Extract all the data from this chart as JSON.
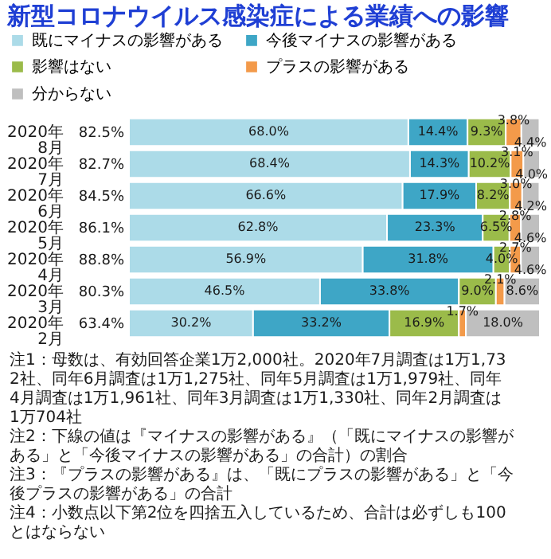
{
  "chart_data": {
    "type": "bar",
    "orientation": "horizontal",
    "stacked": true,
    "legend": "top",
    "title": "新型コロナウイルス感染症による業績への影響",
    "categories": [
      "2020年8月",
      "2020年7月",
      "2020年6月",
      "2020年5月",
      "2020年4月",
      "2020年3月",
      "2020年2月"
    ],
    "series": [
      {
        "name": "既にマイナスの影響がある",
        "color": "#acdbe8",
        "values": [
          68.0,
          68.4,
          66.6,
          62.8,
          56.9,
          46.5,
          30.2
        ],
        "value_labels": [
          "68.0%",
          "68.4%",
          "66.6%",
          "62.8%",
          "56.9%",
          "46.5%",
          "30.2%"
        ]
      },
      {
        "name": "今後マイナスの影響がある",
        "color": "#3ea6c6",
        "values": [
          14.4,
          14.3,
          17.9,
          23.3,
          31.8,
          33.8,
          33.2
        ],
        "value_labels": [
          "14.4%",
          "14.3%",
          "17.9%",
          "23.3%",
          "31.8%",
          "33.8%",
          "33.2%"
        ]
      },
      {
        "name": "影響はない",
        "color": "#9bbb4a",
        "values": [
          9.3,
          10.2,
          8.2,
          6.5,
          4.0,
          9.0,
          16.9
        ],
        "value_labels": [
          "9.3%",
          "10.2%",
          "8.2%",
          "6.5%",
          "4.0%",
          "9.0%",
          "16.9%"
        ]
      },
      {
        "name": "プラスの影響がある",
        "color": "#f39a4a",
        "values": [
          3.8,
          3.1,
          3.0,
          2.8,
          2.7,
          2.1,
          1.7
        ],
        "value_labels": [
          "3.8%",
          "3.1%",
          "3.0%",
          "2.8%",
          "2.7%",
          "2.1%",
          "1.7%"
        ]
      },
      {
        "name": "分からない",
        "color": "#bfbfbf",
        "values": [
          4.4,
          4.0,
          4.2,
          4.6,
          4.6,
          8.6,
          18.0
        ],
        "value_labels": [
          "4.4%",
          "4.0%",
          "4.2%",
          "4.6%",
          "4.6%",
          "8.6%",
          "18.0%"
        ]
      }
    ],
    "annotations": [
      "82.5%",
      "82.7%",
      "84.5%",
      "86.1%",
      "88.8%",
      "80.3%",
      "63.4%",
      "注1：母数は、有効回答企業1万2,000社。2020年7月調査は1万1,732社、同年6月調査は1万1,275社、同年5月調査は1万1,979社、同年4月調査は1万1,961社、同年3月調査は1万1,330社、同年2月調査は1万704社",
      "注2：下線の値は『マイナスの影響がある』（「既にマイナスの影響がある」と「今後マイナスの影響がある」の合計）の割合",
      "注3：『プラスの影響がある』は、「既にプラスの影響がある」と「今後プラスの影響がある」の合計",
      "注4：小数点以下第2位を四捨五入しているため、合計は必ずしも100とはならない"
    ]
  }
}
